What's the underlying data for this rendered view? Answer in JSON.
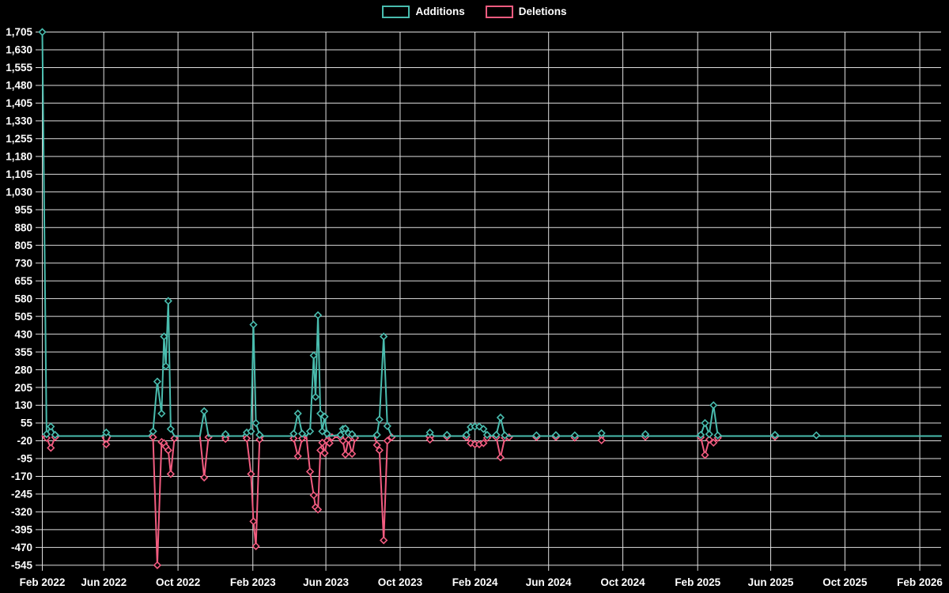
{
  "colors": {
    "background": "#000000",
    "grid": "#dedede",
    "text": "#ffffff",
    "additions": "#49bcae",
    "deletions": "#f25c80"
  },
  "legend": {
    "items": [
      {
        "label": "Additions",
        "color": "#49bcae"
      },
      {
        "label": "Deletions",
        "color": "#f25c80"
      }
    ]
  },
  "chart_data": {
    "type": "line",
    "title": "",
    "xlabel": "",
    "ylabel": "",
    "grid": true,
    "legend_position": "top-center",
    "marker": "hollow-diamond",
    "y_axis": {
      "min": -545,
      "max": 1705,
      "step": 75,
      "tick_labels": [
        "1,705",
        "1,630",
        "1,555",
        "1,480",
        "1,405",
        "1,330",
        "1,255",
        "1,180",
        "1,105",
        "1,030",
        "955",
        "880",
        "805",
        "730",
        "655",
        "580",
        "505",
        "430",
        "355",
        "280",
        "205",
        "130",
        "55",
        "-20",
        "-95",
        "-170",
        "-245",
        "-320",
        "-395",
        "-470",
        "-545"
      ]
    },
    "x_axis": {
      "start_date": "2022-02-20",
      "end_date": "2026-03-08",
      "ticks": [
        {
          "label": "Feb 2022",
          "date": "2022-02-20"
        },
        {
          "label": "Jun 2022",
          "date": "2022-06-01"
        },
        {
          "label": "Oct 2022",
          "date": "2022-10-01"
        },
        {
          "label": "Feb 2023",
          "date": "2023-02-01"
        },
        {
          "label": "Jun 2023",
          "date": "2023-06-01"
        },
        {
          "label": "Oct 2023",
          "date": "2023-10-01"
        },
        {
          "label": "Feb 2024",
          "date": "2024-02-01"
        },
        {
          "label": "Jun 2024",
          "date": "2024-06-01"
        },
        {
          "label": "Oct 2024",
          "date": "2024-10-01"
        },
        {
          "label": "Feb 2025",
          "date": "2025-02-01"
        },
        {
          "label": "Jun 2025",
          "date": "2025-06-01"
        },
        {
          "label": "Oct 2025",
          "date": "2025-10-01"
        },
        {
          "label": "Feb 2026",
          "date": "2026-02-01"
        }
      ]
    },
    "series": [
      {
        "name": "Additions",
        "color": "#49bcae",
        "points": [
          [
            "2022-02-20",
            1705
          ],
          [
            "2022-02-27",
            8
          ],
          [
            "2022-03-06",
            40
          ],
          [
            "2022-03-13",
            5
          ],
          [
            "2022-03-20",
            0
          ],
          [
            "2022-05-29",
            0
          ],
          [
            "2022-06-05",
            15
          ],
          [
            "2022-06-12",
            0
          ],
          [
            "2022-08-14",
            0
          ],
          [
            "2022-08-21",
            20
          ],
          [
            "2022-08-28",
            230
          ],
          [
            "2022-09-04",
            95
          ],
          [
            "2022-09-08",
            420
          ],
          [
            "2022-09-11",
            295
          ],
          [
            "2022-09-15",
            570
          ],
          [
            "2022-09-19",
            30
          ],
          [
            "2022-09-25",
            0
          ],
          [
            "2022-11-06",
            0
          ],
          [
            "2022-11-13",
            105
          ],
          [
            "2022-11-20",
            0
          ],
          [
            "2022-12-11",
            0
          ],
          [
            "2022-12-18",
            8
          ],
          [
            "2022-12-25",
            0
          ],
          [
            "2023-01-15",
            0
          ],
          [
            "2023-01-22",
            15
          ],
          [
            "2023-01-29",
            20
          ],
          [
            "2023-02-02",
            470
          ],
          [
            "2023-02-06",
            55
          ],
          [
            "2023-02-12",
            5
          ],
          [
            "2023-02-19",
            0
          ],
          [
            "2023-04-05",
            0
          ],
          [
            "2023-04-09",
            10
          ],
          [
            "2023-04-16",
            95
          ],
          [
            "2023-04-23",
            10
          ],
          [
            "2023-04-30",
            0
          ],
          [
            "2023-05-06",
            20
          ],
          [
            "2023-05-12",
            340
          ],
          [
            "2023-05-15",
            165
          ],
          [
            "2023-05-19",
            510
          ],
          [
            "2023-05-23",
            95
          ],
          [
            "2023-05-26",
            20
          ],
          [
            "2023-05-30",
            82
          ],
          [
            "2023-06-03",
            10
          ],
          [
            "2023-06-07",
            0
          ],
          [
            "2023-06-25",
            5
          ],
          [
            "2023-06-29",
            30
          ],
          [
            "2023-07-03",
            32
          ],
          [
            "2023-07-08",
            12
          ],
          [
            "2023-07-14",
            8
          ],
          [
            "2023-07-19",
            0
          ],
          [
            "2023-08-20",
            0
          ],
          [
            "2023-08-24",
            5
          ],
          [
            "2023-08-28",
            70
          ],
          [
            "2023-09-04",
            420
          ],
          [
            "2023-09-10",
            42
          ],
          [
            "2023-09-17",
            0
          ],
          [
            "2023-11-12",
            0
          ],
          [
            "2023-11-19",
            15
          ],
          [
            "2023-11-26",
            0
          ],
          [
            "2023-12-14",
            0
          ],
          [
            "2023-12-17",
            5
          ],
          [
            "2023-12-21",
            0
          ],
          [
            "2024-01-14",
            0
          ],
          [
            "2024-01-18",
            5
          ],
          [
            "2024-01-25",
            38
          ],
          [
            "2024-02-01",
            40
          ],
          [
            "2024-02-08",
            40
          ],
          [
            "2024-02-15",
            30
          ],
          [
            "2024-02-21",
            5
          ],
          [
            "2024-02-28",
            0
          ],
          [
            "2024-03-07",
            5
          ],
          [
            "2024-03-14",
            78
          ],
          [
            "2024-03-21",
            3
          ],
          [
            "2024-03-28",
            0
          ],
          [
            "2024-05-08",
            0
          ],
          [
            "2024-05-12",
            3
          ],
          [
            "2024-05-16",
            0
          ],
          [
            "2024-06-09",
            0
          ],
          [
            "2024-06-13",
            4
          ],
          [
            "2024-06-17",
            0
          ],
          [
            "2024-07-10",
            0
          ],
          [
            "2024-07-14",
            3
          ],
          [
            "2024-07-18",
            0
          ],
          [
            "2024-08-23",
            0
          ],
          [
            "2024-08-27",
            12
          ],
          [
            "2024-08-31",
            0
          ],
          [
            "2024-11-03",
            0
          ],
          [
            "2024-11-07",
            8
          ],
          [
            "2024-11-11",
            0
          ],
          [
            "2025-02-02",
            0
          ],
          [
            "2025-02-06",
            5
          ],
          [
            "2025-02-13",
            55
          ],
          [
            "2025-02-20",
            8
          ],
          [
            "2025-02-27",
            130
          ],
          [
            "2025-03-06",
            3
          ],
          [
            "2025-03-13",
            0
          ],
          [
            "2025-06-04",
            0
          ],
          [
            "2025-06-08",
            5
          ],
          [
            "2025-06-12",
            0
          ],
          [
            "2025-08-11",
            0
          ],
          [
            "2025-08-15",
            3
          ],
          [
            "2025-08-19",
            0
          ],
          [
            "2026-03-08",
            0
          ]
        ]
      },
      {
        "name": "Deletions",
        "color": "#f25c80",
        "points": [
          [
            "2022-02-20",
            0
          ],
          [
            "2022-02-27",
            -8
          ],
          [
            "2022-03-06",
            -50
          ],
          [
            "2022-03-13",
            -5
          ],
          [
            "2022-03-20",
            0
          ],
          [
            "2022-05-29",
            0
          ],
          [
            "2022-06-05",
            -35
          ],
          [
            "2022-06-12",
            0
          ],
          [
            "2022-08-14",
            0
          ],
          [
            "2022-08-21",
            -5
          ],
          [
            "2022-08-28",
            -545
          ],
          [
            "2022-09-04",
            -25
          ],
          [
            "2022-09-08",
            -30
          ],
          [
            "2022-09-11",
            -45
          ],
          [
            "2022-09-15",
            -60
          ],
          [
            "2022-09-19",
            -160
          ],
          [
            "2022-09-25",
            -10
          ],
          [
            "2022-10-02",
            0
          ],
          [
            "2022-11-06",
            0
          ],
          [
            "2022-11-13",
            -175
          ],
          [
            "2022-11-20",
            -5
          ],
          [
            "2022-11-27",
            0
          ],
          [
            "2022-12-11",
            0
          ],
          [
            "2022-12-18",
            -12
          ],
          [
            "2022-12-25",
            0
          ],
          [
            "2023-01-15",
            0
          ],
          [
            "2023-01-22",
            -10
          ],
          [
            "2023-01-29",
            -160
          ],
          [
            "2023-02-02",
            -360
          ],
          [
            "2023-02-06",
            -465
          ],
          [
            "2023-02-12",
            -15
          ],
          [
            "2023-02-19",
            0
          ],
          [
            "2023-04-05",
            0
          ],
          [
            "2023-04-09",
            -10
          ],
          [
            "2023-04-16",
            -85
          ],
          [
            "2023-04-23",
            -10
          ],
          [
            "2023-04-30",
            0
          ],
          [
            "2023-05-06",
            -150
          ],
          [
            "2023-05-12",
            -250
          ],
          [
            "2023-05-15",
            -300
          ],
          [
            "2023-05-19",
            -310
          ],
          [
            "2023-05-23",
            -60
          ],
          [
            "2023-05-26",
            -28
          ],
          [
            "2023-05-30",
            -72
          ],
          [
            "2023-06-03",
            -20
          ],
          [
            "2023-06-07",
            -30
          ],
          [
            "2023-06-11",
            -5
          ],
          [
            "2023-06-25",
            -5
          ],
          [
            "2023-06-29",
            -20
          ],
          [
            "2023-07-03",
            -78
          ],
          [
            "2023-07-08",
            -15
          ],
          [
            "2023-07-14",
            -75
          ],
          [
            "2023-07-19",
            -8
          ],
          [
            "2023-07-24",
            0
          ],
          [
            "2023-08-20",
            0
          ],
          [
            "2023-08-24",
            -38
          ],
          [
            "2023-08-28",
            -60
          ],
          [
            "2023-09-04",
            -440
          ],
          [
            "2023-09-10",
            -20
          ],
          [
            "2023-09-17",
            -5
          ],
          [
            "2023-09-24",
            0
          ],
          [
            "2023-11-12",
            0
          ],
          [
            "2023-11-19",
            -15
          ],
          [
            "2023-11-26",
            0
          ],
          [
            "2023-12-14",
            0
          ],
          [
            "2023-12-17",
            -3
          ],
          [
            "2023-12-21",
            0
          ],
          [
            "2024-01-14",
            0
          ],
          [
            "2024-01-18",
            -5
          ],
          [
            "2024-01-25",
            -30
          ],
          [
            "2024-02-01",
            -35
          ],
          [
            "2024-02-08",
            -35
          ],
          [
            "2024-02-15",
            -30
          ],
          [
            "2024-02-21",
            -8
          ],
          [
            "2024-02-28",
            0
          ],
          [
            "2024-03-07",
            -5
          ],
          [
            "2024-03-14",
            -90
          ],
          [
            "2024-03-21",
            -8
          ],
          [
            "2024-03-28",
            -5
          ],
          [
            "2024-04-04",
            0
          ],
          [
            "2024-05-08",
            0
          ],
          [
            "2024-05-12",
            -5
          ],
          [
            "2024-05-16",
            0
          ],
          [
            "2024-06-09",
            0
          ],
          [
            "2024-06-13",
            -4
          ],
          [
            "2024-06-17",
            0
          ],
          [
            "2024-07-10",
            0
          ],
          [
            "2024-07-14",
            -7
          ],
          [
            "2024-07-18",
            0
          ],
          [
            "2024-08-23",
            0
          ],
          [
            "2024-08-27",
            -18
          ],
          [
            "2024-08-31",
            0
          ],
          [
            "2024-11-03",
            0
          ],
          [
            "2024-11-07",
            -3
          ],
          [
            "2024-11-11",
            0
          ],
          [
            "2025-02-02",
            0
          ],
          [
            "2025-02-06",
            -5
          ],
          [
            "2025-02-13",
            -80
          ],
          [
            "2025-02-20",
            -15
          ],
          [
            "2025-02-27",
            -28
          ],
          [
            "2025-03-06",
            -8
          ],
          [
            "2025-03-13",
            0
          ],
          [
            "2025-06-04",
            0
          ],
          [
            "2025-06-08",
            -3
          ],
          [
            "2025-06-12",
            0
          ],
          [
            "2025-08-11",
            0
          ],
          [
            "2025-08-15",
            -2
          ],
          [
            "2025-08-19",
            0
          ],
          [
            "2026-03-08",
            0
          ]
        ]
      }
    ]
  }
}
